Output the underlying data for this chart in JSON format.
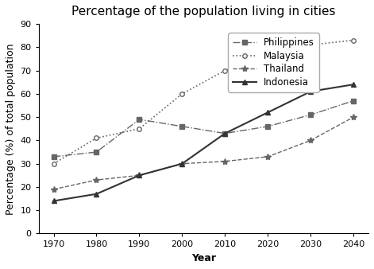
{
  "title": "Percentage of the population living in cities",
  "xlabel": "Year",
  "ylabel": "Percentage (%) of total population",
  "years": [
    1970,
    1980,
    1990,
    2000,
    2010,
    2020,
    2030,
    2040
  ],
  "philippines": [
    33,
    35,
    49,
    46,
    43,
    46,
    51,
    57
  ],
  "malaysia": [
    30,
    41,
    45,
    60,
    70,
    76,
    81,
    83
  ],
  "thailand": [
    19,
    23,
    25,
    30,
    31,
    33,
    40,
    50
  ],
  "indonesia": [
    14,
    17,
    25,
    30,
    43,
    52,
    61,
    64
  ],
  "line_color": "#666666",
  "indonesia_color": "#333333",
  "ylim": [
    0,
    90
  ],
  "yticks": [
    0,
    10,
    20,
    30,
    40,
    50,
    60,
    70,
    80,
    90
  ],
  "title_fontsize": 11,
  "axis_label_fontsize": 9,
  "tick_fontsize": 8,
  "legend_fontsize": 8.5
}
